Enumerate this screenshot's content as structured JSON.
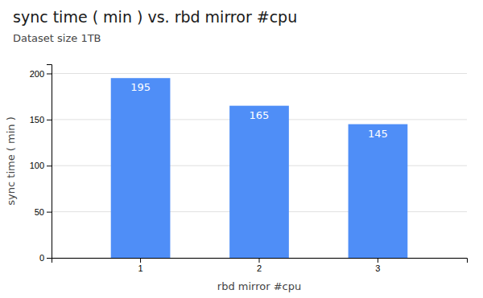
{
  "chart_data": {
    "type": "bar",
    "title": "sync time  ( min )  vs. rbd mirror #cpu",
    "subtitle": "Dataset size 1TB",
    "xlabel": "rbd mirror #cpu",
    "ylabel": "sync time  ( min )",
    "categories": [
      1,
      2,
      3
    ],
    "values": [
      195,
      165,
      145
    ],
    "color": "#4f8ef7",
    "ylim": [
      0,
      210
    ],
    "yticks": [
      0,
      50,
      100,
      150,
      200
    ],
    "grid": true,
    "data_labels": true
  }
}
